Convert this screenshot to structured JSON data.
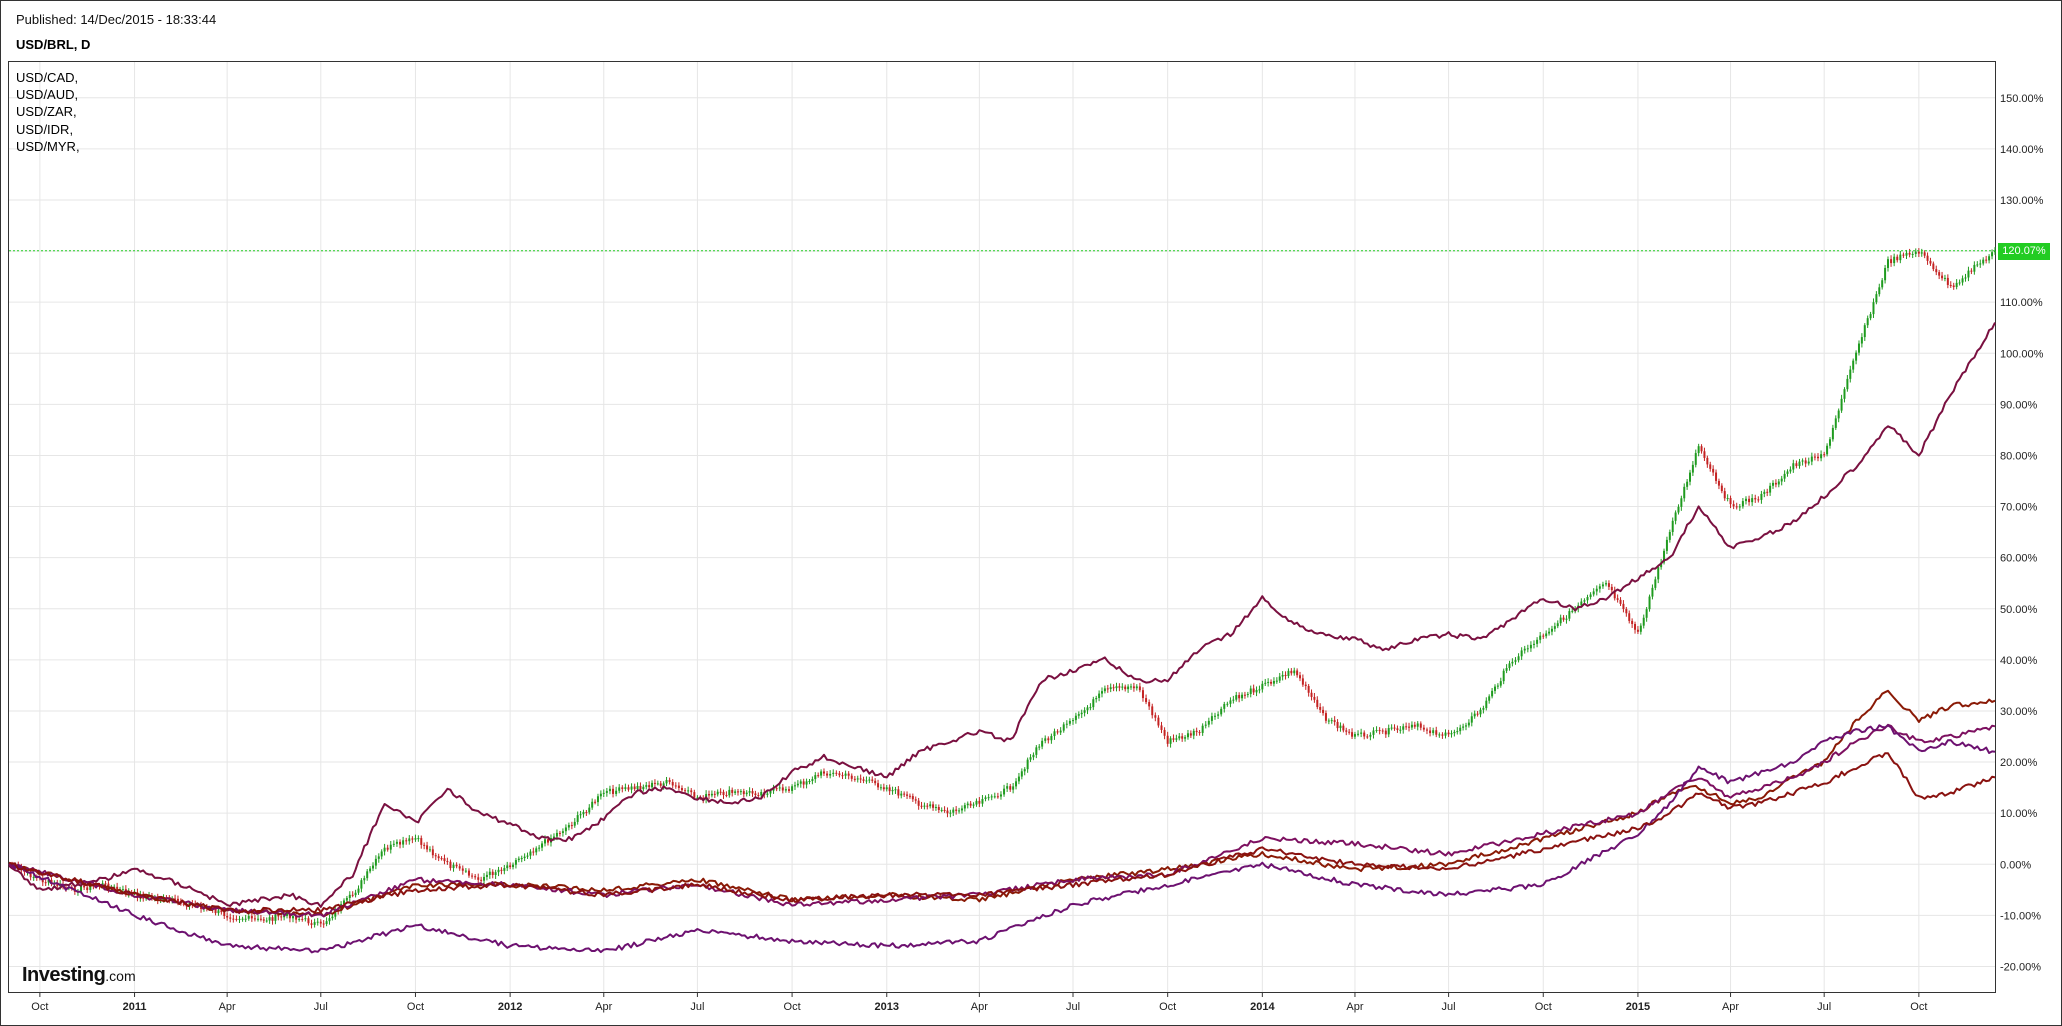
{
  "header": {
    "published": "Published: 14/Dec/2015 - 18:33:44",
    "symbol": "USD/BRL, D"
  },
  "legend": {
    "items": [
      "USD/CAD,",
      "USD/AUD,",
      "USD/ZAR,",
      "USD/IDR,",
      "USD/MYR,"
    ]
  },
  "branding": {
    "logo_main": "Investing",
    "logo_suffix": ".com"
  },
  "chart_data": {
    "type": "line",
    "y_unit": "percent",
    "ylim": [
      -25,
      157
    ],
    "xlim": [
      "2010-09-01",
      "2015-12-14"
    ],
    "y_ticks": [
      "-20.00%",
      "-10.00%",
      "0.00%",
      "10.00%",
      "20.00%",
      "30.00%",
      "40.00%",
      "50.00%",
      "60.00%",
      "70.00%",
      "80.00%",
      "90.00%",
      "100.00%",
      "110.00%",
      "120.00%",
      "130.00%",
      "140.00%",
      "150.00%"
    ],
    "y_tick_values": [
      -20,
      -10,
      0,
      10,
      20,
      30,
      40,
      50,
      60,
      70,
      80,
      90,
      100,
      110,
      120,
      130,
      140,
      150
    ],
    "x_ticks": [
      {
        "label": "Oct",
        "date": "2010-10-01",
        "bold": false
      },
      {
        "label": "2011",
        "date": "2011-01-01",
        "bold": true
      },
      {
        "label": "Apr",
        "date": "2011-04-01",
        "bold": false
      },
      {
        "label": "Jul",
        "date": "2011-07-01",
        "bold": false
      },
      {
        "label": "Oct",
        "date": "2011-10-01",
        "bold": false
      },
      {
        "label": "2012",
        "date": "2012-01-01",
        "bold": true
      },
      {
        "label": "Apr",
        "date": "2012-04-01",
        "bold": false
      },
      {
        "label": "Jul",
        "date": "2012-07-01",
        "bold": false
      },
      {
        "label": "Oct",
        "date": "2012-10-01",
        "bold": false
      },
      {
        "label": "2013",
        "date": "2013-01-01",
        "bold": true
      },
      {
        "label": "Apr",
        "date": "2013-04-01",
        "bold": false
      },
      {
        "label": "Jul",
        "date": "2013-07-01",
        "bold": false
      },
      {
        "label": "Oct",
        "date": "2013-10-01",
        "bold": false
      },
      {
        "label": "2014",
        "date": "2014-01-01",
        "bold": true
      },
      {
        "label": "Apr",
        "date": "2014-04-01",
        "bold": false
      },
      {
        "label": "Jul",
        "date": "2014-07-01",
        "bold": false
      },
      {
        "label": "Oct",
        "date": "2014-10-01",
        "bold": false
      },
      {
        "label": "2015",
        "date": "2015-01-01",
        "bold": true
      },
      {
        "label": "Apr",
        "date": "2015-04-01",
        "bold": false
      },
      {
        "label": "Jul",
        "date": "2015-07-01",
        "bold": false
      },
      {
        "label": "Oct",
        "date": "2015-10-01",
        "bold": false
      }
    ],
    "grid": true,
    "legend_position": "top-left",
    "last_value_label": "120.07%",
    "last_value": 120.07,
    "colors": {
      "grid": "#e6e6e6",
      "candle_up": "#1f9b1f",
      "candle_down": "#c42222",
      "last_value_line": "#22cc22",
      "last_value_tag": "#22cc22"
    },
    "series": [
      {
        "name": "USD/BRL",
        "style": "candlestick",
        "color": "#1f9b1f",
        "x": [
          "2010-09-01",
          "2010-10-01",
          "2010-11-01",
          "2010-12-01",
          "2011-01-01",
          "2011-02-01",
          "2011-03-01",
          "2011-04-01",
          "2011-05-01",
          "2011-06-01",
          "2011-07-01",
          "2011-08-01",
          "2011-09-01",
          "2011-10-01",
          "2011-11-01",
          "2011-12-01",
          "2012-01-01",
          "2012-02-01",
          "2012-03-01",
          "2012-04-01",
          "2012-05-01",
          "2012-06-01",
          "2012-07-01",
          "2012-08-01",
          "2012-09-01",
          "2012-10-01",
          "2012-11-01",
          "2012-12-01",
          "2013-01-01",
          "2013-02-01",
          "2013-03-01",
          "2013-04-01",
          "2013-05-01",
          "2013-06-01",
          "2013-07-01",
          "2013-08-01",
          "2013-09-01",
          "2013-10-01",
          "2013-11-01",
          "2013-12-01",
          "2014-01-01",
          "2014-02-01",
          "2014-03-01",
          "2014-04-01",
          "2014-05-01",
          "2014-06-01",
          "2014-07-01",
          "2014-08-01",
          "2014-09-01",
          "2014-10-01",
          "2014-11-01",
          "2014-12-01",
          "2015-01-01",
          "2015-02-01",
          "2015-03-01",
          "2015-04-01",
          "2015-05-01",
          "2015-06-01",
          "2015-07-01",
          "2015-08-01",
          "2015-09-01",
          "2015-10-01",
          "2015-11-01",
          "2015-12-14"
        ],
        "values": [
          0,
          -3,
          -5,
          -4,
          -6,
          -7,
          -8,
          -10,
          -11,
          -10,
          -12,
          -6,
          3,
          5,
          0,
          -3,
          0,
          4,
          8,
          14,
          15,
          16,
          13,
          14,
          14,
          15,
          18,
          17,
          15,
          12,
          10,
          12,
          15,
          24,
          28,
          34,
          35,
          24,
          26,
          32,
          35,
          38,
          29,
          25,
          26,
          27,
          25,
          30,
          40,
          45,
          50,
          55,
          45,
          65,
          82,
          70,
          72,
          78,
          80,
          100,
          118,
          120,
          113,
          120
        ]
      },
      {
        "name": "USD/ZAR",
        "color": "#7a1040",
        "x": [
          "2010-09-01",
          "2010-10-01",
          "2010-11-01",
          "2010-12-01",
          "2011-01-01",
          "2011-02-01",
          "2011-03-01",
          "2011-04-01",
          "2011-05-01",
          "2011-06-01",
          "2011-07-01",
          "2011-08-01",
          "2011-09-01",
          "2011-10-01",
          "2011-11-01",
          "2011-12-01",
          "2012-01-01",
          "2012-02-01",
          "2012-03-01",
          "2012-04-01",
          "2012-05-01",
          "2012-06-01",
          "2012-07-01",
          "2012-08-01",
          "2012-09-01",
          "2012-10-01",
          "2012-11-01",
          "2012-12-01",
          "2013-01-01",
          "2013-02-01",
          "2013-03-01",
          "2013-04-01",
          "2013-05-01",
          "2013-06-01",
          "2013-07-01",
          "2013-08-01",
          "2013-09-01",
          "2013-10-01",
          "2013-11-01",
          "2013-12-01",
          "2014-01-01",
          "2014-02-01",
          "2014-03-01",
          "2014-04-01",
          "2014-05-01",
          "2014-06-01",
          "2014-07-01",
          "2014-08-01",
          "2014-09-01",
          "2014-10-01",
          "2014-11-01",
          "2014-12-01",
          "2015-01-01",
          "2015-02-01",
          "2015-03-01",
          "2015-04-01",
          "2015-05-01",
          "2015-06-01",
          "2015-07-01",
          "2015-08-01",
          "2015-09-01",
          "2015-10-01",
          "2015-11-01",
          "2015-12-14"
        ],
        "values": [
          0,
          -5,
          -4,
          -3,
          -1,
          -3,
          -5,
          -8,
          -7,
          -6,
          -8,
          -2,
          12,
          8,
          15,
          10,
          8,
          5,
          5,
          9,
          14,
          15,
          13,
          12,
          13,
          18,
          21,
          19,
          17,
          22,
          24,
          26,
          24,
          36,
          38,
          40,
          36,
          36,
          42,
          45,
          52,
          47,
          45,
          44,
          42,
          44,
          45,
          44,
          48,
          52,
          50,
          52,
          56,
          60,
          70,
          62,
          64,
          67,
          72,
          78,
          86,
          80,
          92,
          106
        ]
      },
      {
        "name": "USD/MYR",
        "color": "#8a1a06",
        "x": [
          "2010-09-01",
          "2011-01-01",
          "2011-04-01",
          "2011-07-01",
          "2011-10-01",
          "2012-01-01",
          "2012-04-01",
          "2012-07-01",
          "2012-10-01",
          "2013-01-01",
          "2013-04-01",
          "2013-07-01",
          "2013-10-01",
          "2014-01-01",
          "2014-04-01",
          "2014-07-01",
          "2014-10-01",
          "2015-01-01",
          "2015-02-01",
          "2015-03-01",
          "2015-04-01",
          "2015-05-01",
          "2015-06-01",
          "2015-07-01",
          "2015-08-01",
          "2015-09-01",
          "2015-10-01",
          "2015-11-01",
          "2015-12-14"
        ],
        "values": [
          0,
          -6,
          -9,
          -10,
          -4,
          -4,
          -5,
          -3,
          -7,
          -6,
          -7,
          -3,
          -1,
          2,
          -1,
          0,
          5,
          10,
          14,
          15,
          12,
          13,
          17,
          20,
          28,
          34,
          28,
          31,
          32
        ]
      },
      {
        "name": "USD/IDR",
        "color": "#7d1060",
        "x": [
          "2010-09-01",
          "2011-01-01",
          "2011-04-01",
          "2011-07-01",
          "2011-10-01",
          "2012-01-01",
          "2012-04-01",
          "2012-07-01",
          "2012-10-01",
          "2013-01-01",
          "2013-04-01",
          "2013-07-01",
          "2013-10-01",
          "2014-01-01",
          "2014-04-01",
          "2014-07-01",
          "2014-10-01",
          "2015-01-01",
          "2015-02-01",
          "2015-03-01",
          "2015-04-01",
          "2015-05-01",
          "2015-06-01",
          "2015-07-01",
          "2015-08-01",
          "2015-09-01",
          "2015-10-01",
          "2015-11-01",
          "2015-12-14"
        ],
        "values": [
          0,
          -6,
          -9,
          -10,
          -3,
          -4,
          -6,
          -4,
          -8,
          -7,
          -6,
          -3,
          -2,
          5,
          4,
          2,
          6,
          10,
          14,
          17,
          13,
          15,
          17,
          20,
          24,
          27,
          24,
          25,
          27
        ]
      },
      {
        "name": "USD/CAD",
        "color": "#6d1170",
        "x": [
          "2010-09-01",
          "2011-01-01",
          "2011-04-01",
          "2011-07-01",
          "2011-10-01",
          "2012-01-01",
          "2012-04-01",
          "2012-07-01",
          "2012-10-01",
          "2013-01-01",
          "2013-04-01",
          "2013-07-01",
          "2013-10-01",
          "2014-01-01",
          "2014-04-01",
          "2014-07-01",
          "2014-10-01",
          "2015-01-01",
          "2015-02-01",
          "2015-03-01",
          "2015-04-01",
          "2015-05-01",
          "2015-06-01",
          "2015-07-01",
          "2015-08-01",
          "2015-09-01",
          "2015-10-01",
          "2015-11-01",
          "2015-12-14"
        ],
        "values": [
          0,
          -10,
          -16,
          -17,
          -12,
          -16,
          -17,
          -13,
          -15,
          -16,
          -15,
          -8,
          -4,
          0,
          -4,
          -6,
          -4,
          6,
          12,
          19,
          16,
          18,
          20,
          24,
          26,
          27,
          22,
          24,
          22
        ]
      },
      {
        "name": "USD/AUD",
        "color": "#8a1210",
        "x": [
          "2010-09-01",
          "2011-01-01",
          "2011-04-01",
          "2011-07-01",
          "2011-10-01",
          "2012-01-01",
          "2012-04-01",
          "2012-07-01",
          "2012-10-01",
          "2013-01-01",
          "2013-04-01",
          "2013-07-01",
          "2013-10-01",
          "2014-01-01",
          "2014-04-01",
          "2014-07-01",
          "2014-10-01",
          "2015-01-01",
          "2015-02-01",
          "2015-03-01",
          "2015-04-01",
          "2015-05-01",
          "2015-06-01",
          "2015-07-01",
          "2015-08-01",
          "2015-09-01",
          "2015-10-01",
          "2015-11-01",
          "2015-12-14"
        ],
        "values": [
          0,
          -6,
          -9,
          -9,
          -5,
          -4,
          -6,
          -4,
          -7,
          -6,
          -6,
          -4,
          -2,
          3,
          0,
          -1,
          3,
          7,
          10,
          14,
          11,
          12,
          14,
          16,
          19,
          22,
          13,
          14,
          17
        ]
      }
    ]
  }
}
